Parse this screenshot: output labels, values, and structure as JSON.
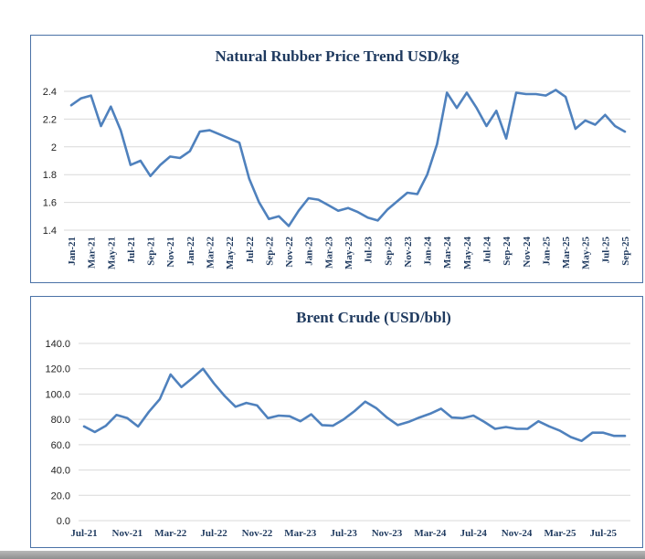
{
  "colors": {
    "line": "#4f81bd",
    "grid": "#d9d9d9",
    "border": "#4a72a6",
    "title": "#1f3a5f"
  },
  "chart_data": [
    {
      "type": "line",
      "title": "Natural Rubber Price Trend USD/kg",
      "xlabel": "",
      "ylabel": "",
      "ylim": [
        1.4,
        2.4
      ],
      "yticks": [
        "1.4",
        "1.6",
        "1.8",
        "2",
        "2.2",
        "2.4"
      ],
      "grid": true,
      "tick_labels": [
        "Jan-21",
        "Mar-21",
        "May-21",
        "Jul-21",
        "Sep-21",
        "Nov-21",
        "Jan-22",
        "Mar-22",
        "May-22",
        "Jul-22",
        "Sep-22",
        "Nov-22",
        "Jan-23",
        "Mar-23",
        "May-23",
        "Jul-23",
        "Sep-23",
        "Nov-23",
        "Jan-24",
        "Mar-24",
        "May-24",
        "Jul-24",
        "Sep-24",
        "Nov-24",
        "Jan-25",
        "Mar-25",
        "May-25",
        "Jul-25",
        "Sep-25"
      ],
      "x": [
        "Jan-21",
        "Feb-21",
        "Mar-21",
        "Apr-21",
        "May-21",
        "Jun-21",
        "Jul-21",
        "Aug-21",
        "Sep-21",
        "Oct-21",
        "Nov-21",
        "Dec-21",
        "Jan-22",
        "Feb-22",
        "Mar-22",
        "Apr-22",
        "May-22",
        "Jun-22",
        "Jul-22",
        "Aug-22",
        "Sep-22",
        "Oct-22",
        "Nov-22",
        "Dec-22",
        "Jan-23",
        "Feb-23",
        "Mar-23",
        "Apr-23",
        "May-23",
        "Jun-23",
        "Jul-23",
        "Aug-23",
        "Sep-23",
        "Oct-23",
        "Nov-23",
        "Dec-23",
        "Jan-24",
        "Feb-24",
        "Mar-24",
        "Apr-24",
        "May-24",
        "Jun-24",
        "Jul-24",
        "Aug-24",
        "Sep-24",
        "Oct-24",
        "Nov-24",
        "Dec-24",
        "Jan-25",
        "Feb-25",
        "Mar-25",
        "Apr-25",
        "May-25",
        "Jun-25",
        "Jul-25",
        "Aug-25",
        "Sep-25"
      ],
      "values": [
        2.3,
        2.35,
        2.37,
        2.15,
        2.29,
        2.12,
        1.87,
        1.9,
        1.79,
        1.87,
        1.93,
        1.92,
        1.97,
        2.11,
        2.12,
        2.09,
        2.06,
        2.03,
        1.77,
        1.6,
        1.48,
        1.5,
        1.43,
        1.54,
        1.63,
        1.62,
        1.58,
        1.54,
        1.56,
        1.53,
        1.49,
        1.47,
        1.55,
        1.61,
        1.67,
        1.66,
        1.8,
        2.02,
        2.39,
        2.28,
        2.39,
        2.28,
        2.15,
        2.26,
        2.06,
        2.39,
        2.38,
        2.38,
        2.37,
        2.41,
        2.36,
        2.13,
        2.19,
        2.16,
        2.23,
        2.15,
        2.11
      ]
    },
    {
      "type": "line",
      "title": "Brent Crude (USD/bbl)",
      "xlabel": "",
      "ylabel": "",
      "ylim": [
        0,
        140
      ],
      "yticks": [
        "0.0",
        "20.0",
        "40.0",
        "60.0",
        "80.0",
        "100.0",
        "120.0",
        "140.0"
      ],
      "grid": true,
      "tick_labels": [
        "Jul-21",
        "Nov-21",
        "Mar-22",
        "Jul-22",
        "Nov-22",
        "Mar-23",
        "Jul-23",
        "Nov-23",
        "Mar-24",
        "Jul-24",
        "Nov-24",
        "Mar-25",
        "Jul-25"
      ],
      "x": [
        "Jul-21",
        "Aug-21",
        "Sep-21",
        "Oct-21",
        "Nov-21",
        "Dec-21",
        "Jan-22",
        "Feb-22",
        "Mar-22",
        "Apr-22",
        "May-22",
        "Jun-22",
        "Jul-22",
        "Aug-22",
        "Sep-22",
        "Oct-22",
        "Nov-22",
        "Dec-22",
        "Jan-23",
        "Feb-23",
        "Mar-23",
        "Apr-23",
        "May-23",
        "Jun-23",
        "Jul-23",
        "Aug-23",
        "Sep-23",
        "Oct-23",
        "Nov-23",
        "Dec-23",
        "Jan-24",
        "Feb-24",
        "Mar-24",
        "Apr-24",
        "May-24",
        "Jun-24",
        "Jul-24",
        "Aug-24",
        "Sep-24",
        "Oct-24",
        "Nov-24",
        "Dec-24",
        "Jan-25",
        "Feb-25",
        "Mar-25",
        "Apr-25",
        "May-25",
        "Jun-25",
        "Jul-25",
        "Aug-25",
        "Sep-25"
      ],
      "values": [
        74.5,
        70.0,
        74.8,
        83.5,
        81.0,
        74.3,
        86.0,
        96.0,
        115.5,
        105.5,
        112.5,
        120.0,
        108.5,
        98.5,
        90.0,
        93.0,
        91.0,
        81.0,
        83.0,
        82.5,
        78.5,
        84.0,
        75.5,
        75.0,
        80.0,
        86.5,
        94.0,
        89.0,
        81.5,
        75.5,
        78.0,
        81.5,
        84.5,
        88.5,
        81.5,
        81.0,
        83.0,
        78.0,
        72.5,
        74.0,
        72.5,
        72.5,
        78.5,
        74.5,
        71.0,
        66.0,
        63.0,
        69.5,
        69.5,
        67.0,
        67.0
      ]
    }
  ]
}
